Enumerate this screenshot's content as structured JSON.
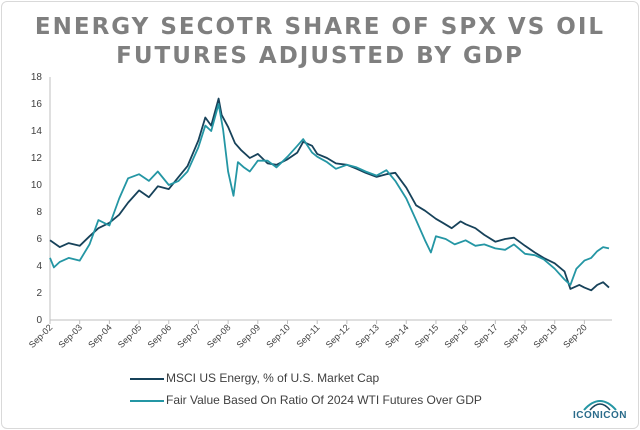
{
  "chart_data": {
    "type": "line",
    "title_line1": "ENERGY SECOTR SHARE OF SPX VS OIL",
    "title_line2": "FUTURES ADJUSTED BY GDP",
    "xlabel": "",
    "ylabel": "",
    "ylim": [
      0,
      18
    ],
    "yticks": [
      0,
      2,
      4,
      6,
      8,
      10,
      12,
      14,
      16,
      18
    ],
    "xlim": [
      2002.67,
      2021.6
    ],
    "xticks": [
      {
        "x": 2002.67,
        "label": "Sep-02"
      },
      {
        "x": 2003.67,
        "label": "Sep-03"
      },
      {
        "x": 2004.67,
        "label": "Sep-04"
      },
      {
        "x": 2005.67,
        "label": "Sep-05"
      },
      {
        "x": 2006.67,
        "label": "Sep-06"
      },
      {
        "x": 2007.67,
        "label": "Sep-07"
      },
      {
        "x": 2008.67,
        "label": "Sep-08"
      },
      {
        "x": 2009.67,
        "label": "Sep-09"
      },
      {
        "x": 2010.67,
        "label": "Sep-10"
      },
      {
        "x": 2011.67,
        "label": "Sep-11"
      },
      {
        "x": 2012.67,
        "label": "Sep-12"
      },
      {
        "x": 2013.67,
        "label": "Sep-13"
      },
      {
        "x": 2014.67,
        "label": "Sep-14"
      },
      {
        "x": 2015.67,
        "label": "Sep-15"
      },
      {
        "x": 2016.67,
        "label": "Sep-16"
      },
      {
        "x": 2017.67,
        "label": "Sep-17"
      },
      {
        "x": 2018.67,
        "label": "Sep-18"
      },
      {
        "x": 2019.67,
        "label": "Sep-19"
      },
      {
        "x": 2020.67,
        "label": "Sep-20"
      }
    ],
    "series": [
      {
        "name": "MSCI US Energy, % of U.S. Market Cap",
        "color": "#17425a",
        "points": [
          [
            2002.67,
            5.9
          ],
          [
            2003.0,
            5.4
          ],
          [
            2003.3,
            5.7
          ],
          [
            2003.67,
            5.5
          ],
          [
            2004.0,
            6.2
          ],
          [
            2004.3,
            6.8
          ],
          [
            2004.67,
            7.2
          ],
          [
            2005.0,
            7.8
          ],
          [
            2005.3,
            8.7
          ],
          [
            2005.67,
            9.6
          ],
          [
            2006.0,
            9.1
          ],
          [
            2006.3,
            9.9
          ],
          [
            2006.67,
            9.7
          ],
          [
            2007.0,
            10.6
          ],
          [
            2007.3,
            11.4
          ],
          [
            2007.67,
            13.3
          ],
          [
            2007.9,
            15.0
          ],
          [
            2008.1,
            14.4
          ],
          [
            2008.35,
            16.4
          ],
          [
            2008.45,
            15.2
          ],
          [
            2008.67,
            14.3
          ],
          [
            2008.9,
            13.1
          ],
          [
            2009.1,
            12.6
          ],
          [
            2009.4,
            12.0
          ],
          [
            2009.67,
            12.3
          ],
          [
            2010.0,
            11.6
          ],
          [
            2010.3,
            11.5
          ],
          [
            2010.67,
            11.9
          ],
          [
            2011.0,
            12.4
          ],
          [
            2011.2,
            13.2
          ],
          [
            2011.5,
            12.9
          ],
          [
            2011.67,
            12.3
          ],
          [
            2012.0,
            12.0
          ],
          [
            2012.3,
            11.6
          ],
          [
            2012.67,
            11.5
          ],
          [
            2013.0,
            11.2
          ],
          [
            2013.3,
            10.9
          ],
          [
            2013.67,
            10.6
          ],
          [
            2014.0,
            10.8
          ],
          [
            2014.3,
            10.9
          ],
          [
            2014.67,
            9.8
          ],
          [
            2015.0,
            8.5
          ],
          [
            2015.3,
            8.1
          ],
          [
            2015.67,
            7.5
          ],
          [
            2015.9,
            7.2
          ],
          [
            2016.2,
            6.8
          ],
          [
            2016.5,
            7.3
          ],
          [
            2016.67,
            7.1
          ],
          [
            2017.0,
            6.8
          ],
          [
            2017.3,
            6.3
          ],
          [
            2017.67,
            5.8
          ],
          [
            2018.0,
            6.0
          ],
          [
            2018.3,
            6.1
          ],
          [
            2018.67,
            5.5
          ],
          [
            2019.0,
            5.0
          ],
          [
            2019.3,
            4.6
          ],
          [
            2019.67,
            4.2
          ],
          [
            2020.0,
            3.6
          ],
          [
            2020.2,
            2.3
          ],
          [
            2020.5,
            2.6
          ],
          [
            2020.67,
            2.4
          ],
          [
            2020.9,
            2.2
          ],
          [
            2021.1,
            2.6
          ],
          [
            2021.3,
            2.8
          ],
          [
            2021.5,
            2.4
          ]
        ]
      },
      {
        "name": "Fair Value Based On Ratio Of 2024 WTI Futures Over GDP",
        "color": "#2496a4",
        "points": [
          [
            2002.67,
            4.6
          ],
          [
            2002.8,
            3.9
          ],
          [
            2003.0,
            4.3
          ],
          [
            2003.3,
            4.6
          ],
          [
            2003.67,
            4.4
          ],
          [
            2004.0,
            5.6
          ],
          [
            2004.3,
            7.4
          ],
          [
            2004.67,
            7.0
          ],
          [
            2005.0,
            9.0
          ],
          [
            2005.3,
            10.5
          ],
          [
            2005.67,
            10.8
          ],
          [
            2006.0,
            10.3
          ],
          [
            2006.3,
            11.0
          ],
          [
            2006.67,
            10.0
          ],
          [
            2007.0,
            10.3
          ],
          [
            2007.3,
            11.0
          ],
          [
            2007.67,
            12.8
          ],
          [
            2007.9,
            14.4
          ],
          [
            2008.1,
            14.0
          ],
          [
            2008.35,
            16.0
          ],
          [
            2008.5,
            14.1
          ],
          [
            2008.67,
            11.0
          ],
          [
            2008.85,
            9.2
          ],
          [
            2009.0,
            11.7
          ],
          [
            2009.2,
            11.3
          ],
          [
            2009.4,
            11.0
          ],
          [
            2009.67,
            11.8
          ],
          [
            2010.0,
            11.8
          ],
          [
            2010.3,
            11.3
          ],
          [
            2010.67,
            12.1
          ],
          [
            2011.0,
            12.9
          ],
          [
            2011.2,
            13.4
          ],
          [
            2011.5,
            12.4
          ],
          [
            2011.67,
            12.1
          ],
          [
            2012.0,
            11.7
          ],
          [
            2012.3,
            11.2
          ],
          [
            2012.67,
            11.5
          ],
          [
            2013.0,
            11.3
          ],
          [
            2013.3,
            11.0
          ],
          [
            2013.67,
            10.7
          ],
          [
            2014.0,
            11.1
          ],
          [
            2014.3,
            10.3
          ],
          [
            2014.67,
            9.0
          ],
          [
            2015.0,
            7.4
          ],
          [
            2015.3,
            5.9
          ],
          [
            2015.5,
            5.0
          ],
          [
            2015.67,
            6.2
          ],
          [
            2016.0,
            6.0
          ],
          [
            2016.3,
            5.6
          ],
          [
            2016.67,
            5.9
          ],
          [
            2017.0,
            5.5
          ],
          [
            2017.3,
            5.6
          ],
          [
            2017.67,
            5.3
          ],
          [
            2018.0,
            5.2
          ],
          [
            2018.3,
            5.6
          ],
          [
            2018.67,
            4.9
          ],
          [
            2019.0,
            4.8
          ],
          [
            2019.3,
            4.5
          ],
          [
            2019.67,
            3.8
          ],
          [
            2020.0,
            3.0
          ],
          [
            2020.2,
            2.6
          ],
          [
            2020.4,
            3.8
          ],
          [
            2020.67,
            4.4
          ],
          [
            2020.9,
            4.6
          ],
          [
            2021.1,
            5.1
          ],
          [
            2021.3,
            5.4
          ],
          [
            2021.5,
            5.3
          ]
        ]
      }
    ]
  },
  "legend": {
    "a_label": "MSCI US Energy, % of U.S. Market Cap",
    "b_label": "Fair Value Based On Ratio Of 2024 WTI Futures Over GDP"
  },
  "logo": {
    "text": "ICONICON",
    "color": "#2a6b8a"
  }
}
